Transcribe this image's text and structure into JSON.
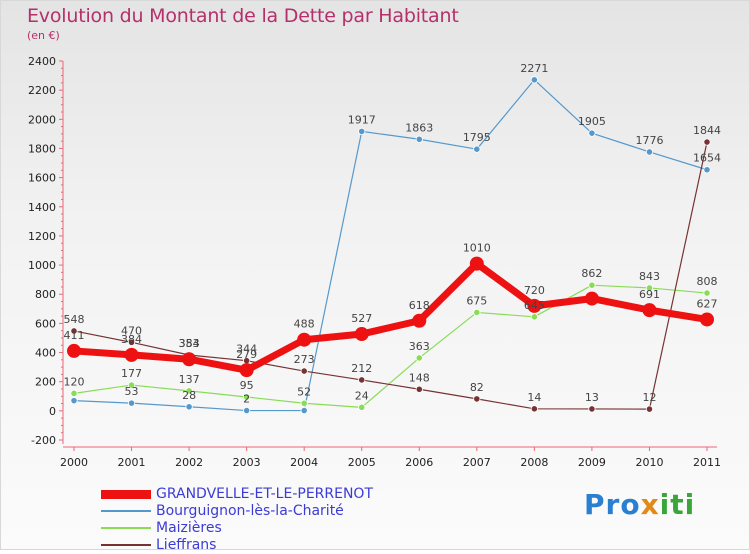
{
  "title": "Evolution du Montant de la Dette par Habitant",
  "subtitle": "(en €)",
  "logo_text": "Proxiti",
  "chart_data": {
    "type": "line",
    "title": "Evolution du Montant de la Dette par Habitant",
    "subtitle": "(en €)",
    "xlabel": "",
    "ylabel": "",
    "x": [
      "2000",
      "2001",
      "2002",
      "2003",
      "2004",
      "2005",
      "2006",
      "2007",
      "2008",
      "2009",
      "2010",
      "2011"
    ],
    "ylim": [
      -200,
      2400
    ],
    "yticks": [
      -200,
      0,
      200,
      400,
      600,
      800,
      1000,
      1200,
      1400,
      1600,
      1800,
      2000,
      2200,
      2400
    ],
    "grid": false,
    "legend_position": "bottom-left",
    "series": [
      {
        "name": "GRANDVELLE-ET-LE-PERRENOT",
        "color": "#ee1111",
        "values": [
          411,
          384,
          354,
          279,
          488,
          527,
          618,
          1010,
          720,
          770,
          691,
          627
        ],
        "labels": [
          "411",
          "384",
          "354",
          "279",
          "488",
          "527",
          "618",
          "1010",
          "720",
          "",
          "691",
          "627"
        ]
      },
      {
        "name": "Bourguignon-lès-la-Charité",
        "color": "#5599cc",
        "values": [
          70,
          53,
          28,
          2,
          2,
          1917,
          1863,
          1795,
          2271,
          1905,
          1776,
          1654
        ],
        "labels": [
          "",
          "53",
          "28",
          "2",
          "",
          "1917",
          "1863",
          "1795",
          "2271",
          "1905",
          "1776",
          "1654"
        ]
      },
      {
        "name": "Maizières",
        "color": "#88dd55",
        "values": [
          120,
          177,
          137,
          95,
          52,
          24,
          363,
          675,
          645,
          862,
          843,
          808
        ],
        "labels": [
          "120",
          "177",
          "137",
          "95",
          "52",
          "24",
          "363",
          "675",
          "645",
          "862",
          "843",
          "808"
        ]
      },
      {
        "name": "Lieffrans",
        "color": "#773333",
        "values": [
          548,
          470,
          383,
          344,
          273,
          212,
          148,
          82,
          14,
          13,
          12,
          1844
        ],
        "labels": [
          "548",
          "470",
          "383",
          "344",
          "273",
          "212",
          "148",
          "82",
          "14",
          "13",
          "12",
          "1844"
        ]
      }
    ]
  }
}
